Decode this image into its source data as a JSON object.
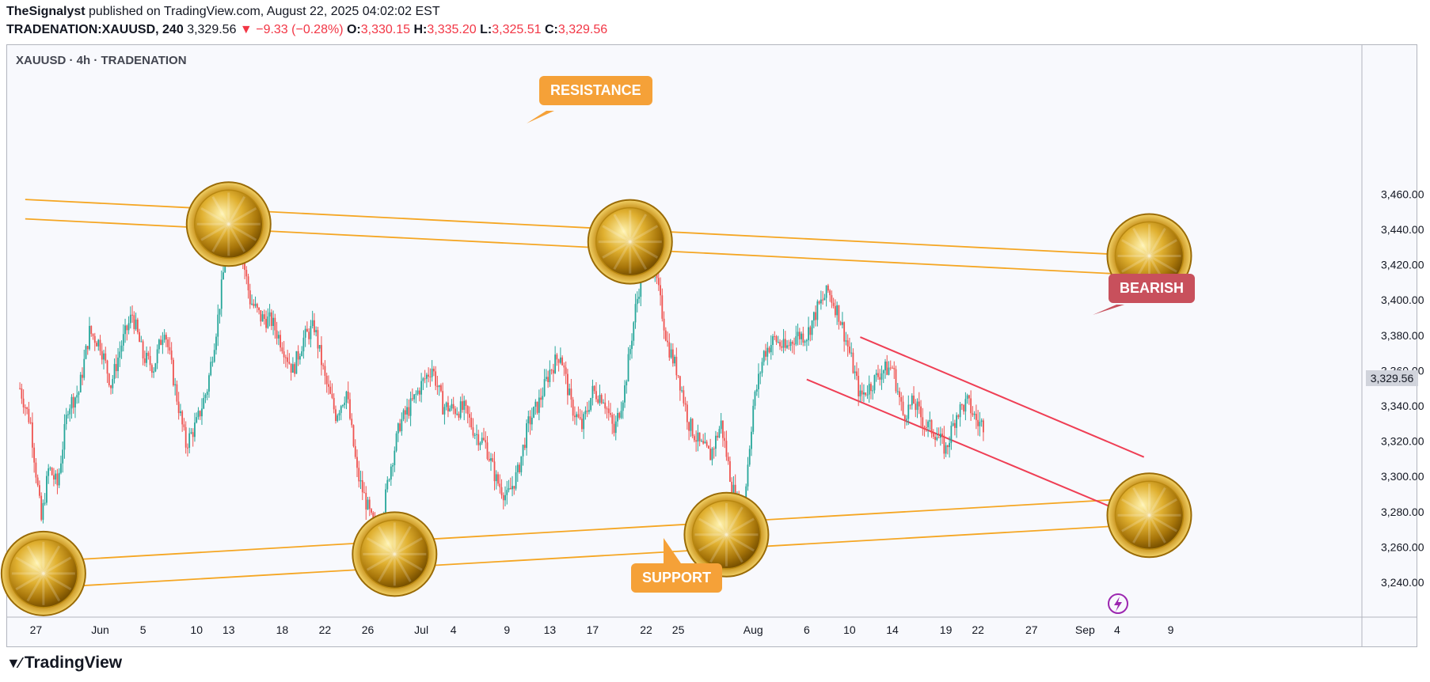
{
  "header": {
    "author": "TheSignalyst",
    "published_text": "published on TradingView.com, August 22, 2025 04:02:02 EST",
    "symbol_full": "TRADENATION:XAUUSD, 240",
    "last": "3,329.56",
    "change": "−9.33 (−0.28%)",
    "o_label": "O:",
    "o_value": "3,330.15",
    "h_label": "H:",
    "h_value": "3,335.20",
    "l_label": "L:",
    "l_value": "3,325.51",
    "c_label": "C:",
    "c_value": "3,329.56"
  },
  "chart_title": "XAUUSD · 4h · TRADENATION",
  "annotations": {
    "resistance": "RESISTANCE",
    "support": "SUPPORT",
    "bearish": "BEARISH"
  },
  "current_price_tag": "3,329.56",
  "footer": {
    "brand": "TradingView"
  },
  "colors": {
    "up": "#26a69a",
    "down": "#ef5350",
    "channel": "#f5a623",
    "bearish_line": "#ef3f55",
    "callout_orange": "#f5a138",
    "callout_red": "#c8505c"
  },
  "chart_data": {
    "type": "candlestick",
    "title": "XAUUSD · 4h · TRADENATION",
    "ylim": [
      3225,
      3475
    ],
    "y_ticks": [
      "3,240.00",
      "3,260.00",
      "3,280.00",
      "3,300.00",
      "3,320.00",
      "3,340.00",
      "3,360.00",
      "3,380.00",
      "3,400.00",
      "3,420.00",
      "3,440.00",
      "3,460.00"
    ],
    "y_tick_values": [
      3240,
      3260,
      3280,
      3300,
      3320,
      3340,
      3360,
      3380,
      3400,
      3420,
      3440,
      3460
    ],
    "x_ticks": [
      "27",
      "Jun",
      "5",
      "10",
      "13",
      "18",
      "22",
      "26",
      "Jul",
      "4",
      "9",
      "13",
      "17",
      "22",
      "25",
      "Aug",
      "6",
      "10",
      "14",
      "19",
      "22",
      "27",
      "Sep",
      "4",
      "9"
    ],
    "x_tick_days": [
      -5,
      1,
      5,
      10,
      13,
      18,
      22,
      26,
      31,
      34,
      39,
      43,
      47,
      52,
      55,
      62,
      67,
      71,
      75,
      80,
      83,
      88,
      93,
      96,
      101
    ],
    "x_unit": "days since May 31, 2025",
    "close_path": [
      [
        -6.5,
        3350
      ],
      [
        -5.5,
        3330
      ],
      [
        -4.5,
        3275
      ],
      [
        -3.8,
        3305
      ],
      [
        -3,
        3295
      ],
      [
        -2,
        3340
      ],
      [
        -1,
        3348
      ],
      [
        0,
        3382
      ],
      [
        1,
        3375
      ],
      [
        2,
        3352
      ],
      [
        3,
        3375
      ],
      [
        4,
        3392
      ],
      [
        5,
        3368
      ],
      [
        6,
        3362
      ],
      [
        7,
        3385
      ],
      [
        8,
        3350
      ],
      [
        9,
        3318
      ],
      [
        10,
        3330
      ],
      [
        11,
        3350
      ],
      [
        12,
        3390
      ],
      [
        13,
        3440
      ],
      [
        14,
        3435
      ],
      [
        15,
        3400
      ],
      [
        16,
        3390
      ],
      [
        17,
        3388
      ],
      [
        18,
        3375
      ],
      [
        19,
        3360
      ],
      [
        20,
        3378
      ],
      [
        21,
        3385
      ],
      [
        22,
        3355
      ],
      [
        23,
        3335
      ],
      [
        24,
        3348
      ],
      [
        25,
        3302
      ],
      [
        26,
        3282
      ],
      [
        27,
        3262
      ],
      [
        28,
        3302
      ],
      [
        29,
        3330
      ],
      [
        30,
        3340
      ],
      [
        31,
        3352
      ],
      [
        32,
        3362
      ],
      [
        33,
        3340
      ],
      [
        34,
        3338
      ],
      [
        35,
        3338
      ],
      [
        36,
        3325
      ],
      [
        37,
        3318
      ],
      [
        38,
        3298
      ],
      [
        39,
        3288
      ],
      [
        40,
        3302
      ],
      [
        41,
        3330
      ],
      [
        42,
        3342
      ],
      [
        43,
        3360
      ],
      [
        44,
        3370
      ],
      [
        45,
        3340
      ],
      [
        46,
        3328
      ],
      [
        47,
        3348
      ],
      [
        48,
        3345
      ],
      [
        49,
        3325
      ],
      [
        50,
        3350
      ],
      [
        51,
        3395
      ],
      [
        52,
        3430
      ],
      [
        53,
        3410
      ],
      [
        54,
        3375
      ],
      [
        55,
        3358
      ],
      [
        56,
        3330
      ],
      [
        57,
        3318
      ],
      [
        58,
        3312
      ],
      [
        59,
        3330
      ],
      [
        60,
        3295
      ],
      [
        61,
        3275
      ],
      [
        62,
        3340
      ],
      [
        63,
        3370
      ],
      [
        64,
        3378
      ],
      [
        65,
        3372
      ],
      [
        66,
        3380
      ],
      [
        67,
        3380
      ],
      [
        68,
        3395
      ],
      [
        69,
        3405
      ],
      [
        70,
        3392
      ],
      [
        71,
        3370
      ],
      [
        72,
        3345
      ],
      [
        73,
        3352
      ],
      [
        74,
        3360
      ],
      [
        75,
        3362
      ],
      [
        76,
        3335
      ],
      [
        77,
        3342
      ],
      [
        78,
        3330
      ],
      [
        79,
        3325
      ],
      [
        80,
        3315
      ],
      [
        81,
        3336
      ],
      [
        82,
        3342
      ],
      [
        83,
        3330
      ],
      [
        83.6,
        3329.56
      ]
    ],
    "resistance_lines": [
      {
        "start": [
          -6,
          3457
        ],
        "end": [
          102,
          3424
        ]
      },
      {
        "start": [
          -6,
          3446
        ],
        "end": [
          102,
          3413
        ]
      }
    ],
    "support_lines": [
      {
        "start": [
          -1,
          3253
        ],
        "end": [
          102,
          3289
        ]
      },
      {
        "start": [
          -1,
          3238
        ],
        "end": [
          102,
          3274
        ]
      }
    ],
    "bearish_lines": [
      {
        "start": [
          72,
          3379
        ],
        "end": [
          98.5,
          3311
        ]
      },
      {
        "start": [
          67,
          3355
        ],
        "end": [
          96.5,
          3280
        ]
      }
    ],
    "coin_markers": [
      [
        -4.3,
        3245
      ],
      [
        13,
        3443
      ],
      [
        50.5,
        3433
      ],
      [
        99,
        3425
      ],
      [
        28.5,
        3256
      ],
      [
        59.5,
        3267
      ],
      [
        99,
        3278
      ]
    ]
  }
}
